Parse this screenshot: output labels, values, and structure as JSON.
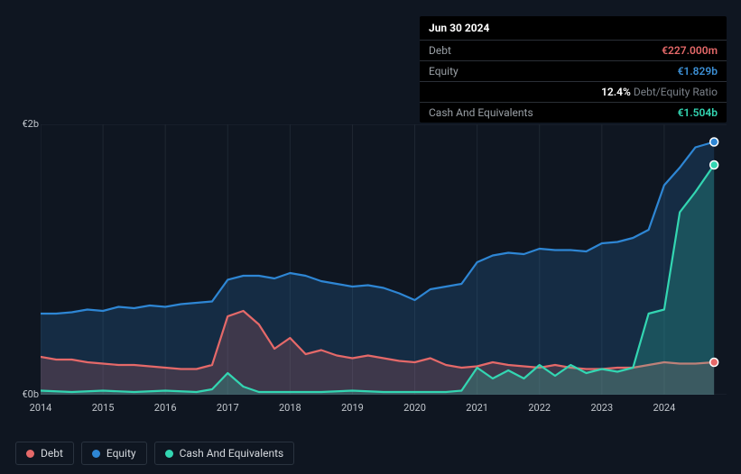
{
  "chart": {
    "type": "area",
    "background_color": "#0f1621",
    "grid_color": "#1f2732",
    "currency_prefix": "€",
    "y": {
      "min": 0,
      "max": 2.0,
      "ticks": [
        {
          "v": 0,
          "label": "€0b"
        },
        {
          "v": 2.0,
          "label": "€2b"
        }
      ]
    },
    "x": {
      "min": 2014,
      "max": 2025,
      "ticks": [
        2014,
        2015,
        2016,
        2017,
        2018,
        2019,
        2020,
        2021,
        2022,
        2023,
        2024
      ]
    },
    "series": [
      {
        "id": "equity",
        "label": "Equity",
        "color": "#2e86d4",
        "fill": "rgba(46,134,212,0.20)",
        "stroke_width": 2.2,
        "yx": [
          [
            2014.0,
            0.6
          ],
          [
            2014.25,
            0.6
          ],
          [
            2014.5,
            0.61
          ],
          [
            2014.75,
            0.63
          ],
          [
            2015.0,
            0.62
          ],
          [
            2015.25,
            0.65
          ],
          [
            2015.5,
            0.64
          ],
          [
            2015.75,
            0.66
          ],
          [
            2016.0,
            0.65
          ],
          [
            2016.25,
            0.67
          ],
          [
            2016.5,
            0.68
          ],
          [
            2016.75,
            0.69
          ],
          [
            2017.0,
            0.85
          ],
          [
            2017.25,
            0.88
          ],
          [
            2017.5,
            0.88
          ],
          [
            2017.75,
            0.86
          ],
          [
            2018.0,
            0.9
          ],
          [
            2018.25,
            0.88
          ],
          [
            2018.5,
            0.84
          ],
          [
            2018.75,
            0.82
          ],
          [
            2019.0,
            0.8
          ],
          [
            2019.25,
            0.81
          ],
          [
            2019.5,
            0.79
          ],
          [
            2019.75,
            0.75
          ],
          [
            2020.0,
            0.7
          ],
          [
            2020.25,
            0.78
          ],
          [
            2020.5,
            0.8
          ],
          [
            2020.75,
            0.82
          ],
          [
            2021.0,
            0.98
          ],
          [
            2021.25,
            1.03
          ],
          [
            2021.5,
            1.05
          ],
          [
            2021.75,
            1.04
          ],
          [
            2022.0,
            1.08
          ],
          [
            2022.25,
            1.07
          ],
          [
            2022.5,
            1.07
          ],
          [
            2022.75,
            1.06
          ],
          [
            2023.0,
            1.12
          ],
          [
            2023.25,
            1.13
          ],
          [
            2023.5,
            1.16
          ],
          [
            2023.75,
            1.22
          ],
          [
            2024.0,
            1.55
          ],
          [
            2024.25,
            1.68
          ],
          [
            2024.5,
            1.83
          ],
          [
            2024.8,
            1.87
          ]
        ]
      },
      {
        "id": "debt",
        "label": "Debt",
        "color": "#e56969",
        "fill": "rgba(229,105,105,0.20)",
        "stroke_width": 2.2,
        "yx": [
          [
            2014.0,
            0.28
          ],
          [
            2014.25,
            0.26
          ],
          [
            2014.5,
            0.26
          ],
          [
            2014.75,
            0.24
          ],
          [
            2015.0,
            0.23
          ],
          [
            2015.25,
            0.22
          ],
          [
            2015.5,
            0.22
          ],
          [
            2015.75,
            0.21
          ],
          [
            2016.0,
            0.2
          ],
          [
            2016.25,
            0.19
          ],
          [
            2016.5,
            0.19
          ],
          [
            2016.75,
            0.22
          ],
          [
            2017.0,
            0.58
          ],
          [
            2017.25,
            0.62
          ],
          [
            2017.5,
            0.52
          ],
          [
            2017.75,
            0.34
          ],
          [
            2018.0,
            0.42
          ],
          [
            2018.25,
            0.3
          ],
          [
            2018.5,
            0.33
          ],
          [
            2018.75,
            0.29
          ],
          [
            2019.0,
            0.27
          ],
          [
            2019.25,
            0.29
          ],
          [
            2019.5,
            0.27
          ],
          [
            2019.75,
            0.25
          ],
          [
            2020.0,
            0.24
          ],
          [
            2020.25,
            0.27
          ],
          [
            2020.5,
            0.22
          ],
          [
            2020.75,
            0.2
          ],
          [
            2021.0,
            0.21
          ],
          [
            2021.25,
            0.24
          ],
          [
            2021.5,
            0.22
          ],
          [
            2021.75,
            0.21
          ],
          [
            2022.0,
            0.2
          ],
          [
            2022.25,
            0.22
          ],
          [
            2022.5,
            0.2
          ],
          [
            2022.75,
            0.19
          ],
          [
            2023.0,
            0.19
          ],
          [
            2023.25,
            0.2
          ],
          [
            2023.5,
            0.2
          ],
          [
            2023.75,
            0.22
          ],
          [
            2024.0,
            0.24
          ],
          [
            2024.25,
            0.23
          ],
          [
            2024.5,
            0.23
          ],
          [
            2024.8,
            0.24
          ]
        ]
      },
      {
        "id": "cash",
        "label": "Cash And Equivalents",
        "color": "#33d6b2",
        "fill": "rgba(51,214,178,0.22)",
        "stroke_width": 2.2,
        "yx": [
          [
            2014.0,
            0.03
          ],
          [
            2014.5,
            0.02
          ],
          [
            2015.0,
            0.03
          ],
          [
            2015.5,
            0.02
          ],
          [
            2016.0,
            0.03
          ],
          [
            2016.5,
            0.02
          ],
          [
            2016.75,
            0.04
          ],
          [
            2017.0,
            0.16
          ],
          [
            2017.25,
            0.06
          ],
          [
            2017.5,
            0.02
          ],
          [
            2018.0,
            0.02
          ],
          [
            2018.5,
            0.02
          ],
          [
            2019.0,
            0.03
          ],
          [
            2019.5,
            0.02
          ],
          [
            2020.0,
            0.02
          ],
          [
            2020.5,
            0.02
          ],
          [
            2020.75,
            0.03
          ],
          [
            2021.0,
            0.2
          ],
          [
            2021.25,
            0.12
          ],
          [
            2021.5,
            0.18
          ],
          [
            2021.75,
            0.12
          ],
          [
            2022.0,
            0.22
          ],
          [
            2022.25,
            0.14
          ],
          [
            2022.5,
            0.22
          ],
          [
            2022.75,
            0.16
          ],
          [
            2023.0,
            0.19
          ],
          [
            2023.25,
            0.17
          ],
          [
            2023.5,
            0.2
          ],
          [
            2023.75,
            0.6
          ],
          [
            2024.0,
            0.63
          ],
          [
            2024.25,
            1.35
          ],
          [
            2024.5,
            1.5
          ],
          [
            2024.8,
            1.7
          ]
        ]
      }
    ],
    "marker_x": 2024.8,
    "markers": [
      {
        "series": "equity",
        "y": 1.87,
        "color": "#2e86d4"
      },
      {
        "series": "cash",
        "y": 1.7,
        "color": "#33d6b2"
      },
      {
        "series": "debt",
        "y": 0.24,
        "color": "#e56969"
      }
    ]
  },
  "tooltip": {
    "title": "Jun 30 2024",
    "rows": [
      {
        "label": "Debt",
        "value": "€227.000m",
        "cls": "debt"
      },
      {
        "label": "Equity",
        "value": "€1.829b",
        "cls": "equity"
      },
      {
        "label": "",
        "value": "12.4%",
        "suffix": " Debt/Equity Ratio",
        "cls": "ratio"
      },
      {
        "label": "Cash And Equivalents",
        "value": "€1.504b",
        "cls": "cash"
      }
    ]
  },
  "legend": [
    {
      "label": "Debt",
      "color": "#e56969"
    },
    {
      "label": "Equity",
      "color": "#2e86d4"
    },
    {
      "label": "Cash And Equivalents",
      "color": "#33d6b2"
    }
  ]
}
